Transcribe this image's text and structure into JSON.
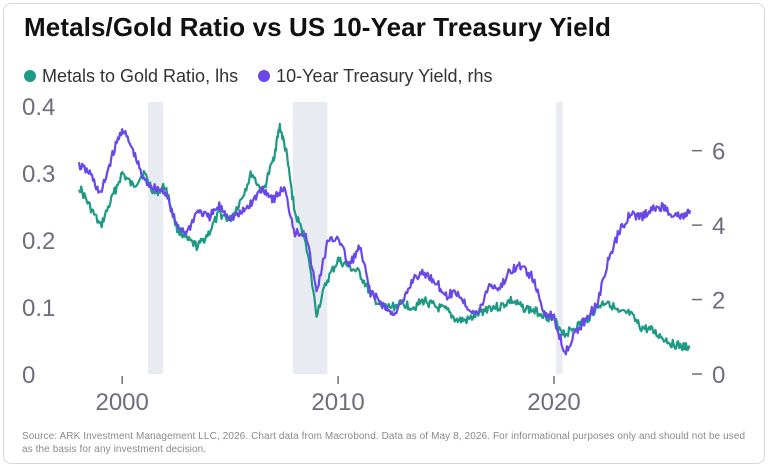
{
  "title": "Metals/Gold Ratio vs US 10-Year Treasury Yield",
  "source": "Source: ARK Investment Management LLC, 2026. Chart data from Macrobond. Data as of May 8, 2026. For informational purposes only and should not be used as the basis for any investment decision.",
  "chart_data": {
    "type": "line",
    "title": "Metals/Gold Ratio vs US 10-Year Treasury Yield",
    "xlabel": "",
    "ylabel": "",
    "xlim": [
      1998.0,
      2026.3
    ],
    "y_left": {
      "label": "",
      "range": [
        0,
        0.4
      ],
      "ticks": [
        "0",
        "0.1",
        "0.2",
        "0.3",
        "0.4"
      ]
    },
    "y_right": {
      "label": "",
      "range": [
        0,
        7.2
      ],
      "ticks": [
        "0",
        "2",
        "4",
        "6"
      ]
    },
    "x_ticks": [
      "2000",
      "2010",
      "2020"
    ],
    "recession_shading": [
      [
        2001.2,
        2001.9
      ],
      [
        2007.9,
        2009.5
      ],
      [
        2020.1,
        2020.4
      ]
    ],
    "grid": false,
    "legend_position": "top-left",
    "series": [
      {
        "name": "Metals to Gold Ratio, lhs",
        "axis": "left",
        "color": "#1e9a84",
        "x": [
          1998.0,
          1998.5,
          1999.0,
          1999.5,
          2000.0,
          2000.5,
          2001.0,
          2001.5,
          2002.0,
          2002.5,
          2003.0,
          2003.5,
          2004.0,
          2004.5,
          2005.0,
          2005.5,
          2006.0,
          2006.5,
          2007.0,
          2007.3,
          2007.6,
          2008.0,
          2008.5,
          2009.0,
          2009.5,
          2010.0,
          2010.5,
          2011.0,
          2011.5,
          2012.0,
          2012.5,
          2013.0,
          2013.5,
          2014.0,
          2014.5,
          2015.0,
          2015.5,
          2016.0,
          2016.5,
          2017.0,
          2017.5,
          2018.0,
          2018.5,
          2019.0,
          2019.5,
          2020.0,
          2020.5,
          2021.0,
          2021.5,
          2022.0,
          2022.5,
          2023.0,
          2023.5,
          2024.0,
          2024.5,
          2025.0,
          2025.5,
          2026.0,
          2026.3
        ],
        "y": [
          0.28,
          0.25,
          0.22,
          0.26,
          0.3,
          0.28,
          0.3,
          0.27,
          0.28,
          0.22,
          0.2,
          0.19,
          0.21,
          0.24,
          0.23,
          0.26,
          0.3,
          0.27,
          0.32,
          0.37,
          0.33,
          0.24,
          0.2,
          0.09,
          0.14,
          0.17,
          0.16,
          0.15,
          0.12,
          0.1,
          0.1,
          0.105,
          0.1,
          0.11,
          0.1,
          0.095,
          0.08,
          0.08,
          0.09,
          0.1,
          0.1,
          0.11,
          0.1,
          0.095,
          0.09,
          0.08,
          0.06,
          0.07,
          0.08,
          0.1,
          0.11,
          0.09,
          0.09,
          0.07,
          0.065,
          0.055,
          0.045,
          0.04,
          0.04
        ]
      },
      {
        "name": "10-Year Treasury Yield, rhs",
        "axis": "right",
        "color": "#6a47e8",
        "x": [
          1998.0,
          1998.5,
          1999.0,
          1999.5,
          2000.0,
          2000.5,
          2001.0,
          2001.5,
          2002.0,
          2002.5,
          2003.0,
          2003.5,
          2004.0,
          2004.5,
          2005.0,
          2005.5,
          2006.0,
          2006.5,
          2007.0,
          2007.5,
          2008.0,
          2008.5,
          2009.0,
          2009.5,
          2010.0,
          2010.5,
          2011.0,
          2011.5,
          2012.0,
          2012.5,
          2013.0,
          2013.5,
          2014.0,
          2014.5,
          2015.0,
          2015.5,
          2016.0,
          2016.5,
          2017.0,
          2017.5,
          2018.0,
          2018.5,
          2019.0,
          2019.5,
          2020.0,
          2020.5,
          2021.0,
          2021.5,
          2022.0,
          2022.5,
          2023.0,
          2023.5,
          2024.0,
          2024.5,
          2025.0,
          2025.5,
          2026.0,
          2026.3
        ],
        "y": [
          5.6,
          5.4,
          4.8,
          5.8,
          6.6,
          6.0,
          5.2,
          5.0,
          4.9,
          4.0,
          3.8,
          4.4,
          4.2,
          4.5,
          4.2,
          4.3,
          4.6,
          5.0,
          4.7,
          5.0,
          3.8,
          3.8,
          2.2,
          3.5,
          3.7,
          2.9,
          3.4,
          2.2,
          1.9,
          1.6,
          1.9,
          2.6,
          2.7,
          2.5,
          2.1,
          2.2,
          1.8,
          1.6,
          2.4,
          2.3,
          2.8,
          2.9,
          2.6,
          1.7,
          1.5,
          0.6,
          1.1,
          1.5,
          1.9,
          3.0,
          3.8,
          4.3,
          4.2,
          4.4,
          4.5,
          4.3,
          4.2,
          4.4
        ]
      }
    ]
  }
}
